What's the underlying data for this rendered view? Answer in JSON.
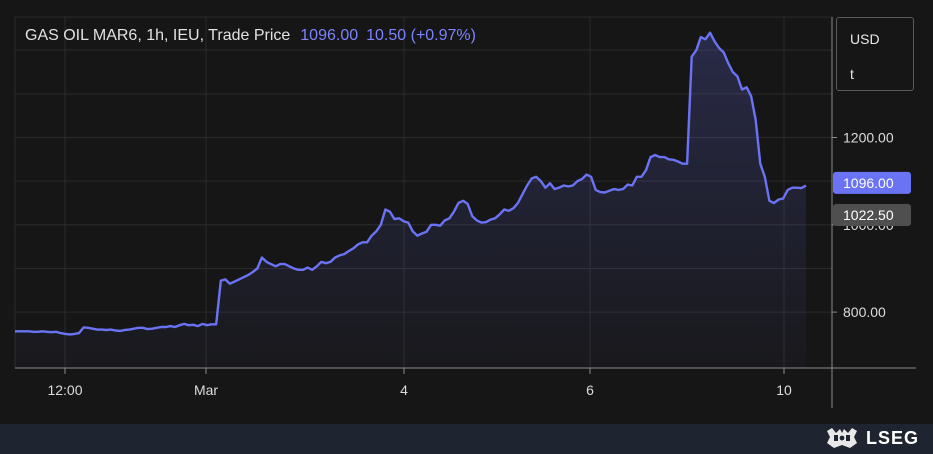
{
  "header": {
    "instrument": "GAS OIL MAR6, 1h, IEU, Trade Price",
    "last_price": "1096.00",
    "change": "10.50 (+0.97%)"
  },
  "unit_box": {
    "currency": "USD",
    "unit": "t"
  },
  "footer": {
    "brand": "LSEG"
  },
  "colors": {
    "background": "#161616",
    "line": "#6b73f5",
    "last_price_tag": "#6b73f5",
    "ref_price_tag": "#4f4f4f",
    "footer": "#1e2430"
  },
  "chart_data": {
    "type": "area",
    "title": "",
    "xlabel": "",
    "ylabel": "",
    "x_ticks": [
      "12:00",
      "Mar",
      "4",
      "6",
      "10"
    ],
    "y_ticks": [
      800.0,
      1000.0,
      1200.0
    ],
    "y_tick_labels": [
      "800.00",
      "1000.00",
      "1200.00"
    ],
    "ylim": [
      672,
      1476
    ],
    "last_price_label": {
      "value": 1096.0,
      "text": "1096.00"
    },
    "ref_price_label": {
      "value": 1022.5,
      "text": "1022.50"
    },
    "grid": true,
    "series": [
      {
        "values": [
          756,
          756,
          756,
          756,
          755,
          755,
          756,
          755,
          754,
          755,
          752,
          750,
          749,
          750,
          752,
          765,
          764,
          762,
          760,
          760,
          759,
          760,
          758,
          757,
          759,
          760,
          762,
          764,
          764,
          761,
          762,
          764,
          766,
          766,
          768,
          766,
          770,
          773,
          770,
          771,
          768,
          773,
          770,
          772,
          772,
          872,
          875,
          865,
          870,
          875,
          880,
          885,
          892,
          900,
          925,
          915,
          910,
          905,
          910,
          910,
          905,
          900,
          897,
          897,
          902,
          897,
          905,
          915,
          912,
          915,
          925,
          930,
          933,
          940,
          946,
          955,
          960,
          960,
          975,
          985,
          1000,
          1035,
          1030,
          1013,
          1015,
          1008,
          1005,
          985,
          975,
          980,
          984,
          1000,
          1000,
          998,
          1010,
          1015,
          1030,
          1050,
          1055,
          1048,
          1020,
          1010,
          1005,
          1006,
          1012,
          1015,
          1024,
          1035,
          1032,
          1038,
          1050,
          1070,
          1090,
          1106,
          1110,
          1100,
          1085,
          1095,
          1082,
          1085,
          1090,
          1088,
          1090,
          1100,
          1105,
          1115,
          1110,
          1080,
          1075,
          1074,
          1078,
          1082,
          1080,
          1082,
          1092,
          1090,
          1110,
          1110,
          1125,
          1155,
          1160,
          1155,
          1155,
          1150,
          1149,
          1145,
          1140,
          1140,
          1385,
          1400,
          1430,
          1425,
          1440,
          1420,
          1405,
          1395,
          1370,
          1350,
          1340,
          1310,
          1315,
          1295,
          1240,
          1140,
          1110,
          1055,
          1050,
          1058,
          1060,
          1080,
          1085,
          1085,
          1084,
          1090
        ]
      }
    ]
  }
}
